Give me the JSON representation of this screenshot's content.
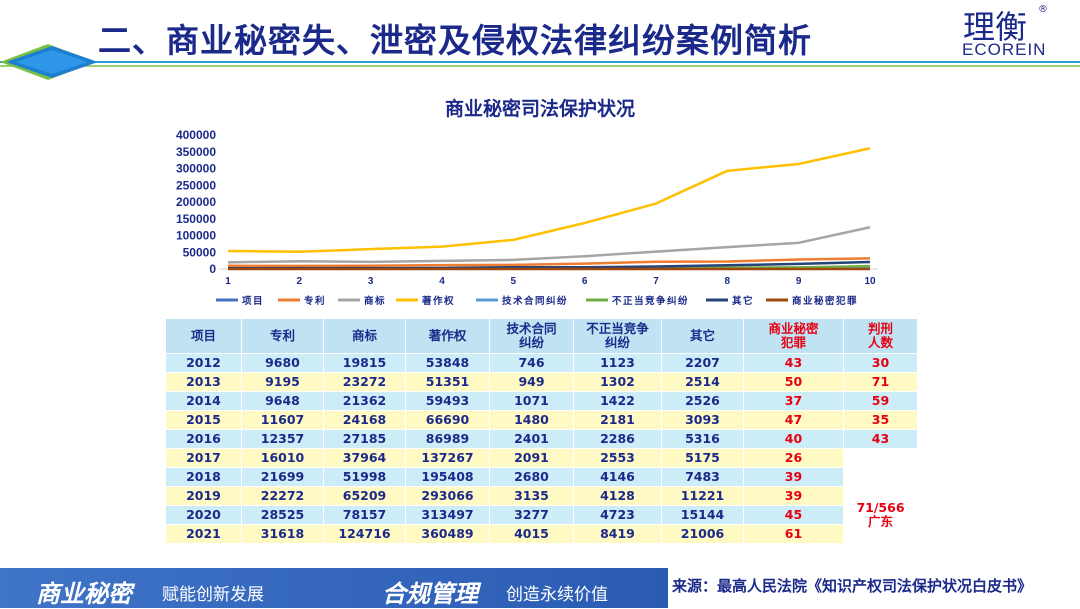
{
  "header": {
    "title": "二、商业秘密失、泄密及侵权法律纠纷案例简析",
    "logo_cn": "理衡",
    "logo_reg": "®",
    "logo_en": "ECOREIN"
  },
  "chart_data": {
    "type": "line",
    "title": "商业秘密司法保护状况",
    "x": [
      1,
      2,
      3,
      4,
      5,
      6,
      7,
      8,
      9,
      10
    ],
    "ylim": [
      0,
      400000
    ],
    "yticks": [
      0,
      50000,
      100000,
      150000,
      200000,
      250000,
      300000,
      350000,
      400000
    ],
    "grid": false,
    "legend_position": "bottom",
    "series": [
      {
        "name": "项目",
        "color": "#4472c4",
        "values": [
          2012,
          2013,
          2014,
          2015,
          2016,
          2017,
          2018,
          2019,
          2020,
          2021
        ]
      },
      {
        "name": "专利",
        "color": "#ed7d31",
        "values": [
          9680,
          9195,
          9648,
          11607,
          12357,
          16010,
          21699,
          22272,
          28525,
          31618
        ]
      },
      {
        "name": "商标",
        "color": "#a5a5a5",
        "values": [
          19815,
          23272,
          21362,
          24168,
          27185,
          37964,
          51998,
          65209,
          78157,
          124716
        ]
      },
      {
        "name": "著作权",
        "color": "#ffc000",
        "values": [
          53848,
          51351,
          59493,
          66690,
          86989,
          137267,
          195408,
          293066,
          313497,
          360489
        ]
      },
      {
        "name": "技术合同纠纷",
        "color": "#5b9bd5",
        "values": [
          746,
          949,
          1071,
          1480,
          2401,
          2091,
          2680,
          3135,
          3277,
          4015
        ]
      },
      {
        "name": "不正当竞争纠纷",
        "color": "#70ad47",
        "values": [
          1123,
          1302,
          1422,
          2181,
          2286,
          2553,
          4146,
          4128,
          4723,
          8419
        ]
      },
      {
        "name": "其它",
        "color": "#264478",
        "values": [
          2207,
          2514,
          2526,
          3093,
          5316,
          5175,
          7483,
          11221,
          15144,
          21006
        ]
      },
      {
        "name": "商业秘密犯罪",
        "color": "#9e480e",
        "values": [
          43,
          50,
          37,
          47,
          40,
          26,
          39,
          39,
          45,
          61
        ]
      }
    ]
  },
  "table": {
    "headers": [
      {
        "line1": "项目",
        "line2": ""
      },
      {
        "line1": "专利",
        "line2": ""
      },
      {
        "line1": "商标",
        "line2": ""
      },
      {
        "line1": "著作权",
        "line2": ""
      },
      {
        "line1": "技术合同",
        "line2": "纠纷"
      },
      {
        "line1": "不正当竞争",
        "line2": "纠纷"
      },
      {
        "line1": "其它",
        "line2": ""
      },
      {
        "line1": "商业秘密",
        "line2": "犯罪"
      },
      {
        "line1": "判刑",
        "line2": "人数"
      }
    ],
    "rows": [
      {
        "year": "2012",
        "patent": "9680",
        "trademark": "19815",
        "copyright": "53848",
        "tech": "746",
        "unfair": "1123",
        "other": "2207",
        "crime": "43",
        "sentenced": "30"
      },
      {
        "year": "2013",
        "patent": "9195",
        "trademark": "23272",
        "copyright": "51351",
        "tech": "949",
        "unfair": "1302",
        "other": "2514",
        "crime": "50",
        "sentenced": "71"
      },
      {
        "year": "2014",
        "patent": "9648",
        "trademark": "21362",
        "copyright": "59493",
        "tech": "1071",
        "unfair": "1422",
        "other": "2526",
        "crime": "37",
        "sentenced": "59"
      },
      {
        "year": "2015",
        "patent": "11607",
        "trademark": "24168",
        "copyright": "66690",
        "tech": "1480",
        "unfair": "2181",
        "other": "3093",
        "crime": "47",
        "sentenced": "35"
      },
      {
        "year": "2016",
        "patent": "12357",
        "trademark": "27185",
        "copyright": "86989",
        "tech": "2401",
        "unfair": "2286",
        "other": "5316",
        "crime": "40",
        "sentenced": "43"
      },
      {
        "year": "2017",
        "patent": "16010",
        "trademark": "37964",
        "copyright": "137267",
        "tech": "2091",
        "unfair": "2553",
        "other": "5175",
        "crime": "26",
        "sentenced": ""
      },
      {
        "year": "2018",
        "patent": "21699",
        "trademark": "51998",
        "copyright": "195408",
        "tech": "2680",
        "unfair": "4146",
        "other": "7483",
        "crime": "39",
        "sentenced": ""
      },
      {
        "year": "2019",
        "patent": "22272",
        "trademark": "65209",
        "copyright": "293066",
        "tech": "3135",
        "unfair": "4128",
        "other": "11221",
        "crime": "39",
        "sentenced": ""
      },
      {
        "year": "2020",
        "patent": "28525",
        "trademark": "78157",
        "copyright": "313497",
        "tech": "3277",
        "unfair": "4723",
        "other": "15144",
        "crime": "45",
        "sentenced": ""
      },
      {
        "year": "2021",
        "patent": "31618",
        "trademark": "124716",
        "copyright": "360489",
        "tech": "4015",
        "unfair": "8419",
        "other": "21006",
        "crime": "61",
        "sentenced": ""
      }
    ],
    "merged_note_line1": "71/566",
    "merged_note_line2": "广东"
  },
  "footer": {
    "slogan1_bold": "商业秘密",
    "slogan1_text": "赋能创新发展",
    "slogan2_bold": "合规管理",
    "slogan2_text": "创造永续价值",
    "source": "来源：最高人民法院《知识产权司法保护状况白皮书》"
  }
}
